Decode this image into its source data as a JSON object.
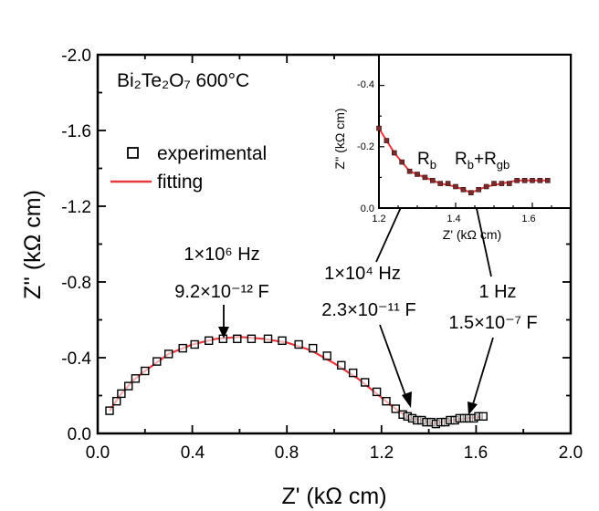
{
  "chart_data": [
    {
      "type": "scatter",
      "panel": "main",
      "xlabel": "Z' (kΩ cm)",
      "ylabel": "Z'' (kΩ cm)",
      "xlim": [
        0.0,
        2.0
      ],
      "ylim": [
        0.0,
        -2.0
      ],
      "x_ticks": [
        "0.0",
        "0.4",
        "0.8",
        "1.2",
        "1.6",
        "2.0"
      ],
      "y_ticks": [
        "0.0",
        "-0.4",
        "-0.8",
        "-1.2",
        "-1.6",
        "-2.0"
      ],
      "sample": "Bi₂Te₂O₇  600°C",
      "legend": {
        "placement": "top-left",
        "experimental": "experimental",
        "fitting": "fitting"
      },
      "series": [
        {
          "name": "experimental",
          "marker": "open-square",
          "color": "#000000",
          "x": [
            0.05,
            0.08,
            0.1,
            0.13,
            0.16,
            0.2,
            0.25,
            0.3,
            0.36,
            0.41,
            0.47,
            0.53,
            0.59,
            0.65,
            0.72,
            0.78,
            0.85,
            0.91,
            0.97,
            1.03,
            1.08,
            1.13,
            1.18,
            1.22,
            1.26,
            1.29,
            1.31,
            1.33,
            1.35,
            1.37,
            1.39,
            1.41,
            1.43,
            1.45,
            1.47,
            1.49,
            1.51,
            1.53,
            1.55,
            1.57,
            1.59,
            1.61,
            1.63
          ],
          "y": [
            -0.12,
            -0.17,
            -0.21,
            -0.25,
            -0.29,
            -0.33,
            -0.38,
            -0.42,
            -0.45,
            -0.47,
            -0.49,
            -0.5,
            -0.5,
            -0.5,
            -0.5,
            -0.49,
            -0.47,
            -0.45,
            -0.41,
            -0.36,
            -0.32,
            -0.27,
            -0.22,
            -0.17,
            -0.13,
            -0.1,
            -0.09,
            -0.08,
            -0.07,
            -0.07,
            -0.06,
            -0.06,
            -0.05,
            -0.06,
            -0.06,
            -0.07,
            -0.07,
            -0.08,
            -0.08,
            -0.08,
            -0.08,
            -0.09,
            -0.09
          ]
        },
        {
          "name": "fitting",
          "type": "line",
          "color": "#e8383d",
          "x": [
            0.05,
            0.1,
            0.15,
            0.2,
            0.3,
            0.4,
            0.5,
            0.6,
            0.7,
            0.8,
            0.9,
            1.0,
            1.1,
            1.2,
            1.27,
            1.32,
            1.37,
            1.42,
            1.45,
            1.5,
            1.56,
            1.63
          ],
          "y": [
            -0.12,
            -0.21,
            -0.28,
            -0.33,
            -0.42,
            -0.47,
            -0.5,
            -0.51,
            -0.5,
            -0.48,
            -0.44,
            -0.37,
            -0.29,
            -0.19,
            -0.12,
            -0.08,
            -0.07,
            -0.05,
            -0.06,
            -0.07,
            -0.08,
            -0.09
          ]
        }
      ],
      "annotations": [
        {
          "line1": "1×10⁶ Hz",
          "line2": "9.2×10⁻¹² F",
          "point": [
            0.53,
            -0.49
          ]
        },
        {
          "line1": "1×10⁴ Hz",
          "line2": "2.3×10⁻¹¹ F",
          "point": [
            1.33,
            -0.08
          ]
        },
        {
          "line1": "1 Hz",
          "line2": "1.5×10⁻⁷ F",
          "point": [
            1.56,
            -0.09
          ]
        }
      ]
    },
    {
      "type": "scatter",
      "panel": "inset",
      "xlabel": "Z' (kΩ cm)",
      "ylabel": "Z'' (kΩ cm)",
      "xlim": [
        1.2,
        1.7
      ],
      "ylim": [
        0.0,
        -0.5
      ],
      "x_ticks": [
        "1.2",
        "1.4",
        "1.6"
      ],
      "y_ticks": [
        "0.0",
        "-0.2",
        "-0.4"
      ],
      "series": [
        {
          "name": "experimental",
          "marker": "filled-square",
          "color": "#7a2a2a",
          "x": [
            1.2,
            1.22,
            1.24,
            1.26,
            1.28,
            1.3,
            1.32,
            1.34,
            1.36,
            1.38,
            1.4,
            1.42,
            1.44,
            1.46,
            1.48,
            1.5,
            1.52,
            1.54,
            1.56,
            1.58,
            1.6,
            1.62,
            1.64
          ],
          "y": [
            -0.26,
            -0.22,
            -0.18,
            -0.15,
            -0.12,
            -0.11,
            -0.1,
            -0.09,
            -0.08,
            -0.08,
            -0.07,
            -0.06,
            -0.05,
            -0.06,
            -0.07,
            -0.08,
            -0.08,
            -0.08,
            -0.09,
            -0.09,
            -0.09,
            -0.09,
            -0.09
          ]
        },
        {
          "name": "fitting",
          "type": "line",
          "color": "#e8383d",
          "x": [
            1.2,
            1.24,
            1.28,
            1.32,
            1.36,
            1.4,
            1.44,
            1.48,
            1.52,
            1.56,
            1.6,
            1.64
          ],
          "y": [
            -0.26,
            -0.18,
            -0.12,
            -0.1,
            -0.08,
            -0.07,
            -0.05,
            -0.07,
            -0.08,
            -0.09,
            -0.09,
            -0.09
          ]
        }
      ],
      "labels": {
        "rb": "R_b",
        "rb_rgb": "R_b+R_gb"
      }
    }
  ]
}
